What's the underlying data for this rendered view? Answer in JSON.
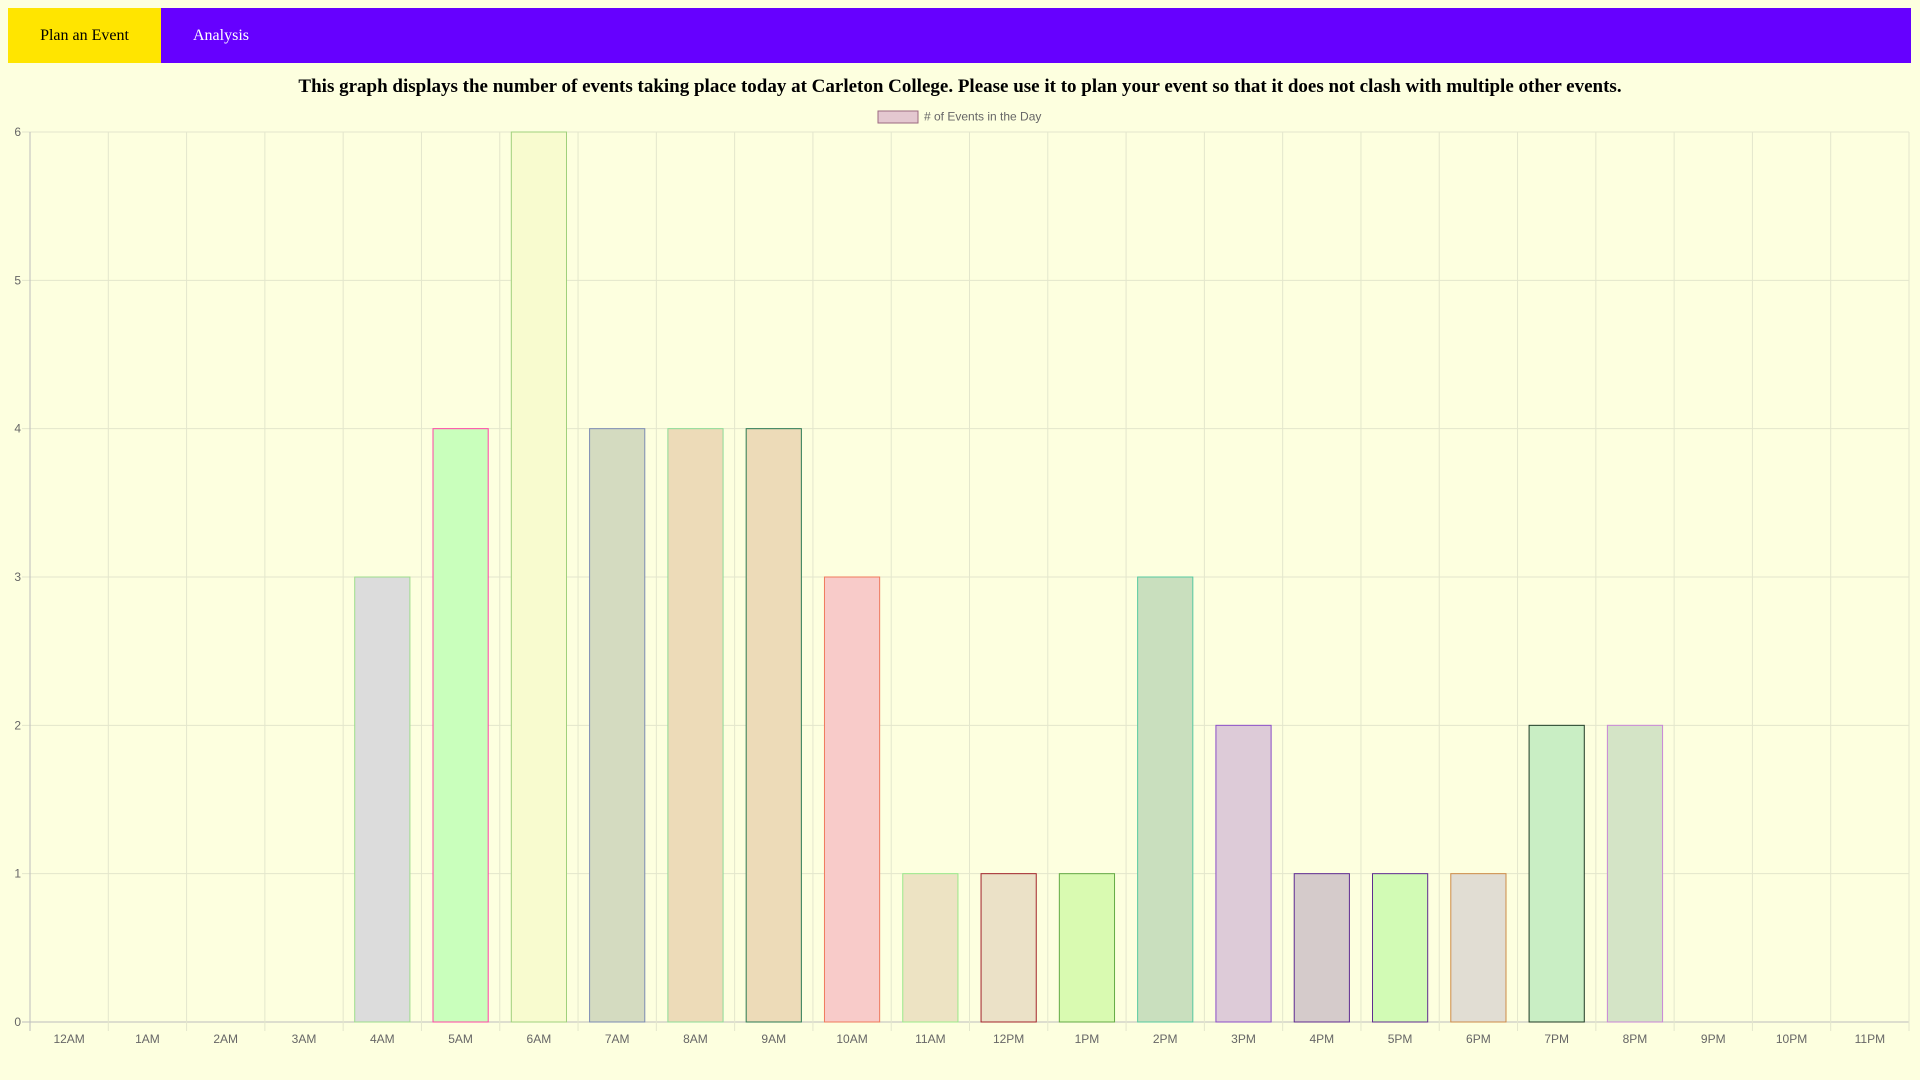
{
  "nav": {
    "items": [
      {
        "label": "Plan an Event",
        "active": true
      },
      {
        "label": "Analysis",
        "active": false
      }
    ],
    "colors": {
      "bar": "#6600ff",
      "active": "#ffe500"
    }
  },
  "page": {
    "title": "This graph displays the number of events taking place today at Carleton College. Please use it to plan your event so that it does not clash with multiple other events.",
    "background": "#fdffdf"
  },
  "chart_data": {
    "type": "bar",
    "categories": [
      "12AM",
      "1AM",
      "2AM",
      "3AM",
      "4AM",
      "5AM",
      "6AM",
      "7AM",
      "8AM",
      "9AM",
      "10AM",
      "11AM",
      "12PM",
      "1PM",
      "2PM",
      "3PM",
      "4PM",
      "5PM",
      "6PM",
      "7PM",
      "8PM",
      "9PM",
      "10PM",
      "11PM"
    ],
    "series": [
      {
        "name": "# of Events in the Day",
        "values": [
          0,
          0,
          0,
          0,
          3,
          4,
          6,
          4,
          4,
          4,
          3,
          1,
          1,
          1,
          3,
          2,
          1,
          1,
          1,
          2,
          2,
          0,
          0,
          0
        ],
        "fills": [
          "#dcdcdc",
          "#dcdcdc",
          "#dcdcdc",
          "#dcdcdc",
          "#dcdcdc",
          "#c9ffbc",
          "#f8fbcf",
          "#d4dbc0",
          "#eddbb8",
          "#eddbb8",
          "#f8cbc9",
          "#ede3c3",
          "#ebe1c7",
          "#d9fab1",
          "#c9dfbe",
          "#ddcbd8",
          "#d5cbcb",
          "#d2fbb5",
          "#e1ddd3",
          "#c9eec4",
          "#d4e4c6",
          "#dcdcdc",
          "#dcdcdc",
          "#dcdcdc"
        ],
        "borders": [
          "#aaaaaa",
          "#aaaaaa",
          "#aaaaaa",
          "#aaaaaa",
          "#9ddc8c",
          "#ff44a6",
          "#9fd07c",
          "#7c8bb3",
          "#8ddb97",
          "#2c7a53",
          "#ef7a5c",
          "#9ae98b",
          "#a2232b",
          "#64aa44",
          "#55c9a0",
          "#8b4ec8",
          "#5e2b91",
          "#5e2b91",
          "#cd8b48",
          "#1e3a25",
          "#c986d7",
          "#aaaaaa",
          "#aaaaaa",
          "#aaaaaa"
        ]
      }
    ],
    "legend": {
      "label": "# of Events in the Day",
      "position": "top",
      "fill": "#e4c8d0",
      "border": "#9c6a80"
    },
    "yticks": [
      "0",
      "1",
      "2",
      "3",
      "4",
      "5",
      "6"
    ],
    "ylim": [
      0,
      6
    ],
    "grid": true,
    "colors": {
      "grid": "#e3e6cc",
      "axis": "#bdbdbd",
      "text": "#666666"
    }
  }
}
